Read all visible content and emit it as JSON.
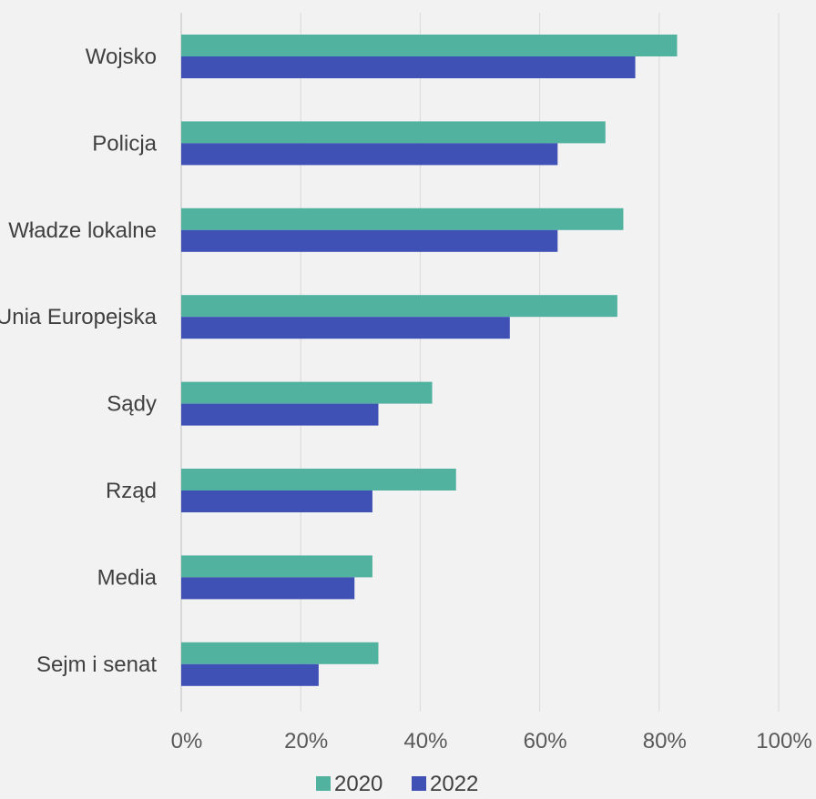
{
  "chart_data": {
    "type": "bar",
    "orientation": "horizontal",
    "categories": [
      "Wojsko",
      "Policja",
      "Władze lokalne",
      "Unia Europejska",
      "Sądy",
      "Rząd",
      "Media",
      "Sejm i senat"
    ],
    "series": [
      {
        "name": "2020",
        "color": "#52b2a0",
        "values": [
          83,
          71,
          74,
          73,
          42,
          46,
          32,
          33
        ]
      },
      {
        "name": "2022",
        "color": "#3f51b5",
        "values": [
          76,
          63,
          63,
          55,
          33,
          32,
          29,
          23
        ]
      }
    ],
    "xticks": [
      "0%",
      "20%",
      "40%",
      "60%",
      "80%",
      "100%"
    ],
    "xlim": [
      0,
      100
    ],
    "grid": true,
    "legend_position": "bottom"
  }
}
